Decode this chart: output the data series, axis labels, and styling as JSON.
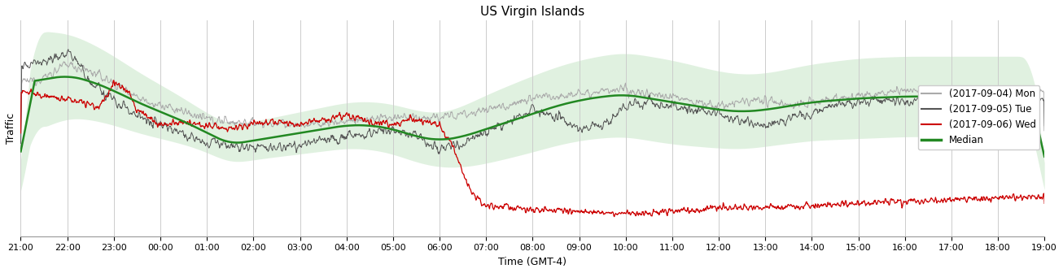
{
  "title": "US Virgin Islands",
  "xlabel": "Time (GMT-4)",
  "ylabel": "Traffic",
  "x_ticks": [
    "21:00",
    "22:00",
    "23:00",
    "00:00",
    "01:00",
    "02:00",
    "03:00",
    "04:00",
    "05:00",
    "06:00",
    "07:00",
    "08:00",
    "09:00",
    "10:00",
    "11:00",
    "12:00",
    "13:00",
    "14:00",
    "15:00",
    "16:00",
    "17:00",
    "18:00",
    "19:00"
  ],
  "legend_labels": [
    "(2017-09-04) Mon",
    "(2017-09-05) Tue",
    "(2017-09-06) Wed",
    "Median"
  ],
  "line_colors": [
    "#aaaaaa",
    "#555555",
    "#cc0000",
    "#228822"
  ],
  "band_color": "#c8e6c8",
  "band_alpha": 0.55,
  "background_color": "#ffffff",
  "grid_color": "#cccccc"
}
